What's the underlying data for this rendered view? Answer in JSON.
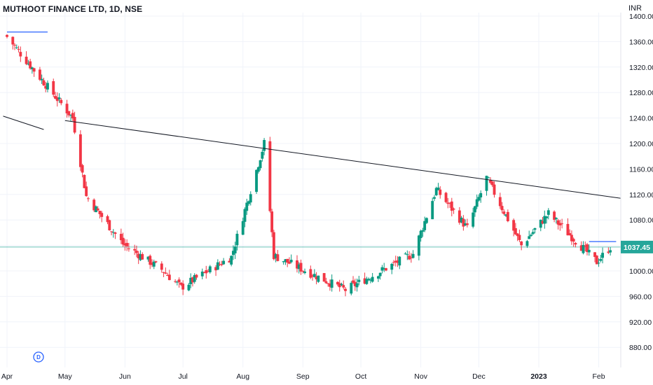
{
  "header": {
    "symbol_title": "MUTHOOT FINANCE LTD, 1D, NSE",
    "currency": "INR"
  },
  "colors": {
    "up": "#089981",
    "down": "#f23645",
    "trendline": "#131722",
    "level_line": "#2962ff",
    "price_line": "#26a69a",
    "price_box": "#26a69a",
    "grid": "#f0f3fa"
  },
  "chart_data": {
    "type": "candlestick",
    "title": "MUTHOOT FINANCE LTD, 1D, NSE",
    "y_axis": {
      "label": "INR",
      "ticks": [
        "1400.00",
        "1360.00",
        "1320.00",
        "1280.00",
        "1240.00",
        "1200.00",
        "1160.00",
        "1120.00",
        "1080.00",
        "1040.00",
        "1000.00",
        "960.00",
        "920.00",
        "880.00"
      ],
      "range": [
        840,
        1410
      ]
    },
    "x_axis": {
      "ticks": [
        {
          "label": "Apr",
          "bold": false
        },
        {
          "label": "May",
          "bold": false
        },
        {
          "label": "Jun",
          "bold": false
        },
        {
          "label": "Jul",
          "bold": false
        },
        {
          "label": "Aug",
          "bold": false
        },
        {
          "label": "Sep",
          "bold": false
        },
        {
          "label": "Oct",
          "bold": false
        },
        {
          "label": "Nov",
          "bold": false
        },
        {
          "label": "Dec",
          "bold": false
        },
        {
          "label": "2023",
          "bold": true
        },
        {
          "label": "Feb",
          "bold": false
        }
      ]
    },
    "last_price": "1037.45",
    "dividend_marker": "D",
    "trendlines": [
      {
        "from": {
          "date": "2022-05-01",
          "price": 1236
        },
        "to": {
          "date": "2023-02-28",
          "price": 1114
        }
      },
      {
        "from": {
          "date": "2022-03-30",
          "price": 1243
        },
        "to": {
          "date": "2022-04-20",
          "price": 1222
        }
      }
    ],
    "levels": [
      {
        "price": 1375,
        "from": "2022-04-01",
        "to": "2022-04-22"
      },
      {
        "price": 1046,
        "from": "2023-01-27",
        "to": "2023-02-10"
      }
    ],
    "key_points": [
      {
        "date": "2022-04-01",
        "high": 1380,
        "low": 1355
      },
      {
        "date": "2022-05-05",
        "close": 1240
      },
      {
        "date": "2022-05-12",
        "low": 1105
      },
      {
        "date": "2022-05-31",
        "low": 1030
      },
      {
        "date": "2022-06-20",
        "low": 990
      },
      {
        "date": "2022-06-30",
        "low": 962
      },
      {
        "date": "2022-07-26",
        "low": 1010
      },
      {
        "date": "2022-08-12",
        "high": 1213,
        "close": 1200
      },
      {
        "date": "2022-08-17",
        "low": 1012
      },
      {
        "date": "2022-09-23",
        "low": 958
      },
      {
        "date": "2022-10-28",
        "low": 1015
      },
      {
        "date": "2022-11-09",
        "high": 1140
      },
      {
        "date": "2022-11-25",
        "low": 1055
      },
      {
        "date": "2022-12-05",
        "high": 1158
      },
      {
        "date": "2022-12-23",
        "low": 1028
      },
      {
        "date": "2023-01-06",
        "high": 1102
      },
      {
        "date": "2023-01-31",
        "low": 1002
      },
      {
        "date": "2023-02-07",
        "close": 1037.45
      }
    ]
  }
}
